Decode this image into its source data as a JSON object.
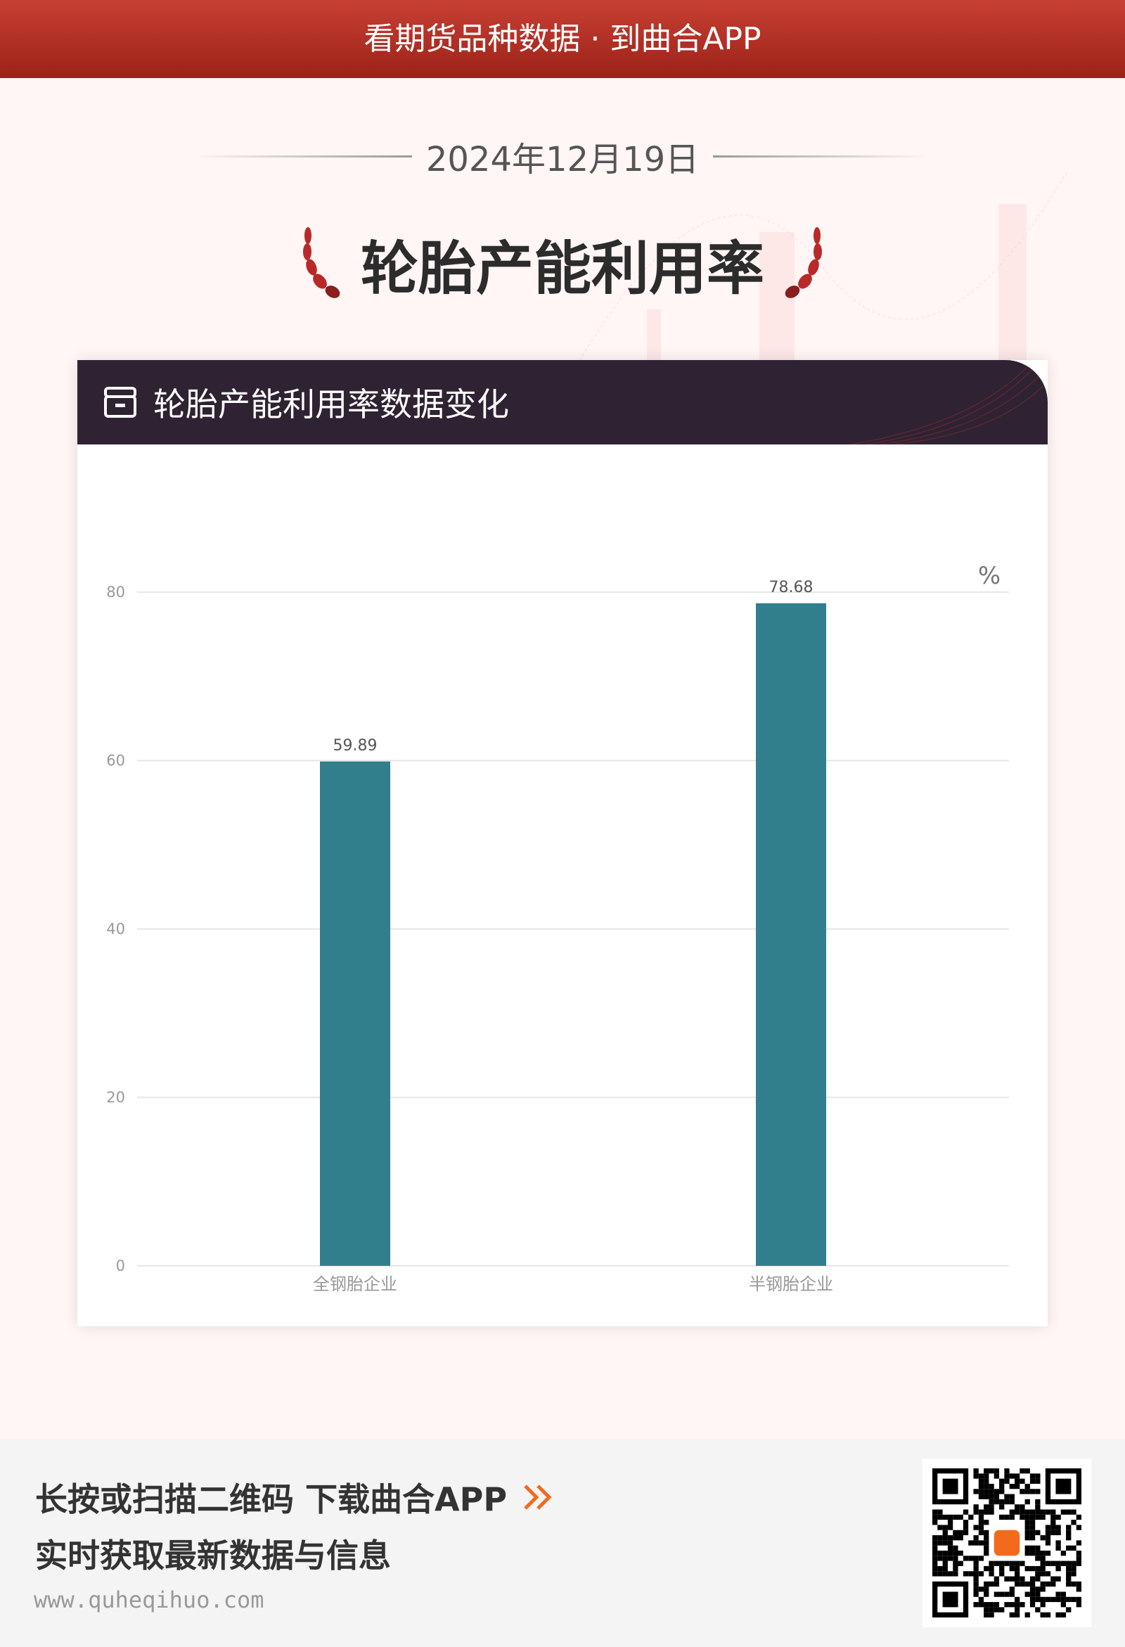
{
  "banner": {
    "text": "看期货品种数据 · 到曲合APP"
  },
  "date": "2024年12月19日",
  "title": "轮胎产能利用率",
  "card": {
    "title": "轮胎产能利用率数据变化"
  },
  "chart_data": {
    "type": "bar",
    "categories": [
      "全钢胎企业",
      "半钢胎企业"
    ],
    "values": [
      59.89,
      78.68
    ],
    "unit": "%",
    "yticks": [
      "0",
      "20",
      "40",
      "60",
      "80"
    ],
    "ylim": [
      0,
      80
    ],
    "grid": true,
    "bar_color": "#317f8c"
  },
  "footer": {
    "line1": "长按或扫描二维码  下载曲合APP",
    "line2": "实时获取最新数据与信息",
    "url": "www.quheqihuo.com",
    "accent": "#f26b1d"
  }
}
